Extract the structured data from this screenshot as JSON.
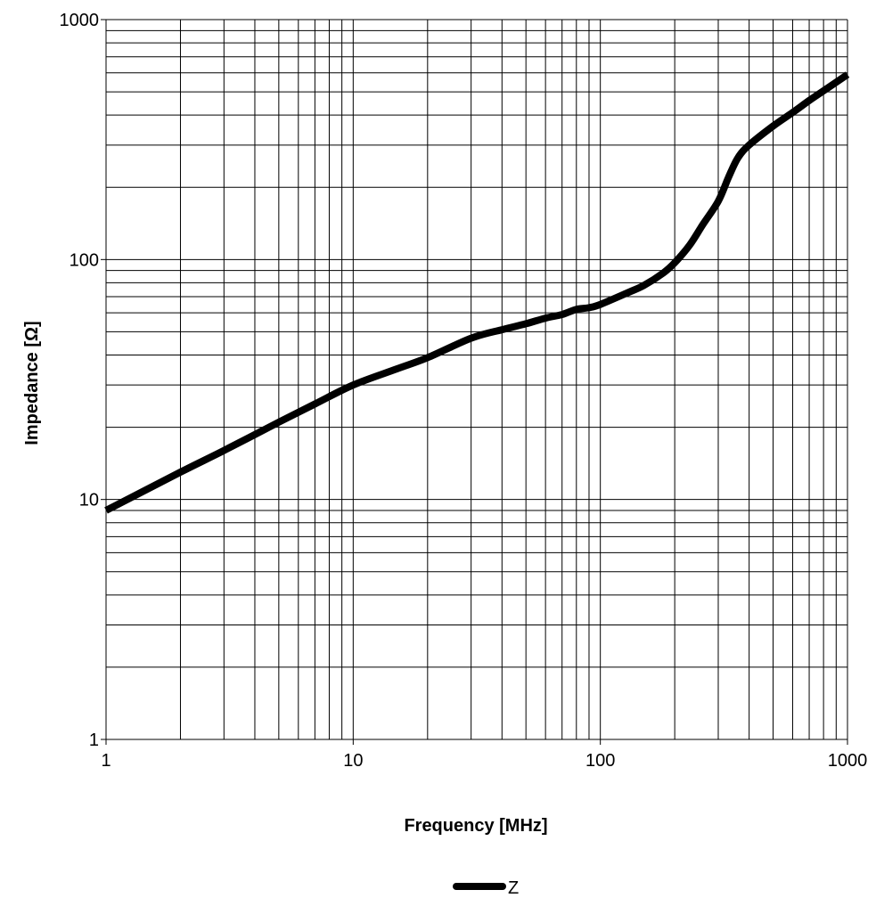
{
  "chart_data": {
    "type": "line",
    "xscale": "log",
    "yscale": "log",
    "xlim": [
      1,
      1000
    ],
    "ylim": [
      1,
      1000
    ],
    "xlabel": "Frequency [MHz]",
    "ylabel": "Impedance [Ω]",
    "x_ticks": [
      "1",
      "10",
      "100",
      "1000"
    ],
    "y_ticks": [
      "1",
      "10",
      "100",
      "1000"
    ],
    "grid": true,
    "legend_position": "bottom-center",
    "series": [
      {
        "name": "Z",
        "color": "#000000",
        "points": [
          [
            1,
            9
          ],
          [
            2,
            13
          ],
          [
            3,
            16
          ],
          [
            5,
            21
          ],
          [
            7,
            25
          ],
          [
            10,
            30
          ],
          [
            15,
            35
          ],
          [
            20,
            39
          ],
          [
            30,
            47
          ],
          [
            40,
            51
          ],
          [
            50,
            54
          ],
          [
            60,
            57
          ],
          [
            70,
            59
          ],
          [
            80,
            62
          ],
          [
            90,
            63
          ],
          [
            100,
            65
          ],
          [
            130,
            73
          ],
          [
            150,
            78
          ],
          [
            180,
            88
          ],
          [
            200,
            97
          ],
          [
            230,
            115
          ],
          [
            260,
            140
          ],
          [
            300,
            175
          ],
          [
            330,
            220
          ],
          [
            360,
            265
          ],
          [
            400,
            300
          ],
          [
            500,
            360
          ],
          [
            600,
            410
          ],
          [
            700,
            460
          ],
          [
            800,
            505
          ],
          [
            1000,
            590
          ]
        ]
      }
    ]
  }
}
